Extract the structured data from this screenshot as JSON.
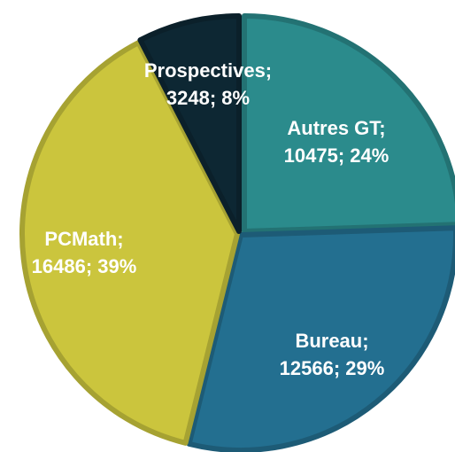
{
  "chart_data": {
    "type": "pie",
    "values": [
      10475,
      12566,
      16486,
      3248
    ],
    "value_labels": [
      "Autres GT; 10475; 24%",
      "Bureau; 12566; 29%",
      "PCMath; 16486; 39%",
      "Prospectives; 3248; 8%"
    ],
    "colors": [
      "#2b8b8c",
      "#236f90",
      "#cbc53d",
      "#0d2733"
    ],
    "start_angle": 0,
    "direction": "clockwise"
  }
}
